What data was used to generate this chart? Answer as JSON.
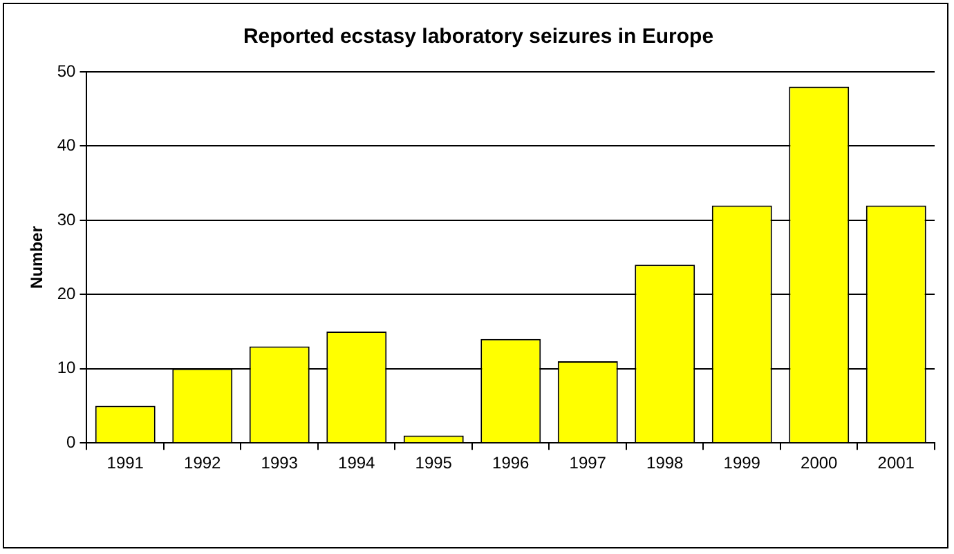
{
  "chart_data": {
    "type": "bar",
    "title": "Reported ecstasy laboratory seizures in Europe",
    "ylabel": "Number",
    "categories": [
      "1991",
      "1992",
      "1993",
      "1994",
      "1995",
      "1996",
      "1997",
      "1998",
      "1999",
      "2000",
      "2001"
    ],
    "values": [
      5,
      10,
      13,
      15,
      1,
      14,
      11,
      24,
      32,
      48,
      32
    ],
    "color": "#ffff00",
    "ylim": [
      0,
      50
    ],
    "yticks": [
      0,
      10,
      20,
      30,
      40,
      50
    ],
    "grid": "y",
    "legend": false
  }
}
